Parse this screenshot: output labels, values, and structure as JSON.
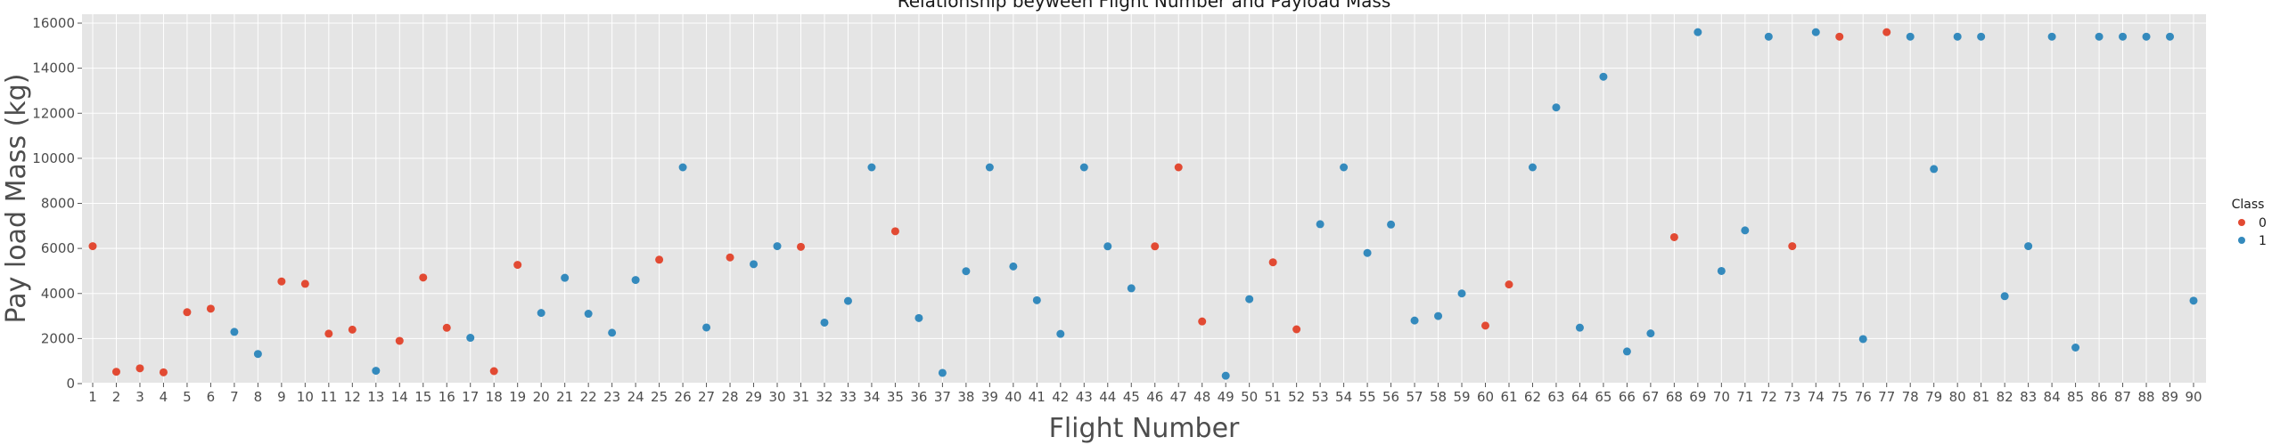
{
  "chart_data": {
    "type": "scatter",
    "title": "Relationship beyween Flight Number and Payload Mass",
    "xlabel": "Flight Number",
    "ylabel": "Pay load Mass (kg)",
    "xlim": [
      1,
      90
    ],
    "ylim": [
      0,
      16000
    ],
    "yticks": [
      0,
      2000,
      4000,
      6000,
      8000,
      10000,
      12000,
      14000,
      16000
    ],
    "grid": true,
    "legend": {
      "title": "Class",
      "position": "right",
      "entries": [
        {
          "label": "0",
          "color": "#e24a33"
        },
        {
          "label": "1",
          "color": "#348abd"
        }
      ]
    },
    "points": [
      {
        "x": 1,
        "y": 6100,
        "c": 0
      },
      {
        "x": 2,
        "y": 525,
        "c": 0
      },
      {
        "x": 3,
        "y": 677,
        "c": 0
      },
      {
        "x": 4,
        "y": 500,
        "c": 0
      },
      {
        "x": 5,
        "y": 3170,
        "c": 0
      },
      {
        "x": 6,
        "y": 3325,
        "c": 0
      },
      {
        "x": 7,
        "y": 2296,
        "c": 1
      },
      {
        "x": 8,
        "y": 1316,
        "c": 1
      },
      {
        "x": 9,
        "y": 4535,
        "c": 0
      },
      {
        "x": 10,
        "y": 4428,
        "c": 0
      },
      {
        "x": 11,
        "y": 2216,
        "c": 0
      },
      {
        "x": 12,
        "y": 2395,
        "c": 0
      },
      {
        "x": 13,
        "y": 570,
        "c": 1
      },
      {
        "x": 14,
        "y": 1898,
        "c": 0
      },
      {
        "x": 15,
        "y": 4707,
        "c": 0
      },
      {
        "x": 16,
        "y": 2477,
        "c": 0
      },
      {
        "x": 17,
        "y": 2034,
        "c": 1
      },
      {
        "x": 18,
        "y": 553,
        "c": 0
      },
      {
        "x": 19,
        "y": 5271,
        "c": 0
      },
      {
        "x": 20,
        "y": 3136,
        "c": 1
      },
      {
        "x": 21,
        "y": 4696,
        "c": 1
      },
      {
        "x": 22,
        "y": 3100,
        "c": 1
      },
      {
        "x": 23,
        "y": 2257,
        "c": 1
      },
      {
        "x": 24,
        "y": 4600,
        "c": 1
      },
      {
        "x": 25,
        "y": 5500,
        "c": 0
      },
      {
        "x": 26,
        "y": 9600,
        "c": 1
      },
      {
        "x": 27,
        "y": 2490,
        "c": 1
      },
      {
        "x": 28,
        "y": 5600,
        "c": 0
      },
      {
        "x": 29,
        "y": 5300,
        "c": 1
      },
      {
        "x": 30,
        "y": 6100,
        "c": 1
      },
      {
        "x": 31,
        "y": 6070,
        "c": 0
      },
      {
        "x": 32,
        "y": 2708,
        "c": 1
      },
      {
        "x": 33,
        "y": 3669,
        "c": 1
      },
      {
        "x": 34,
        "y": 9600,
        "c": 1
      },
      {
        "x": 35,
        "y": 6761,
        "c": 0
      },
      {
        "x": 36,
        "y": 2910,
        "c": 1
      },
      {
        "x": 37,
        "y": 475,
        "c": 1
      },
      {
        "x": 38,
        "y": 4990,
        "c": 1
      },
      {
        "x": 39,
        "y": 9600,
        "c": 1
      },
      {
        "x": 40,
        "y": 5200,
        "c": 1
      },
      {
        "x": 41,
        "y": 3700,
        "c": 1
      },
      {
        "x": 42,
        "y": 2205,
        "c": 1
      },
      {
        "x": 43,
        "y": 9600,
        "c": 1
      },
      {
        "x": 44,
        "y": 6092,
        "c": 1
      },
      {
        "x": 45,
        "y": 4230,
        "c": 1
      },
      {
        "x": 46,
        "y": 6092,
        "c": 0
      },
      {
        "x": 47,
        "y": 9600,
        "c": 0
      },
      {
        "x": 48,
        "y": 2760,
        "c": 0
      },
      {
        "x": 49,
        "y": 350,
        "c": 1
      },
      {
        "x": 50,
        "y": 3750,
        "c": 1
      },
      {
        "x": 51,
        "y": 5383,
        "c": 0
      },
      {
        "x": 52,
        "y": 2410,
        "c": 0
      },
      {
        "x": 53,
        "y": 7076,
        "c": 1
      },
      {
        "x": 54,
        "y": 9600,
        "c": 1
      },
      {
        "x": 55,
        "y": 5800,
        "c": 1
      },
      {
        "x": 56,
        "y": 7060,
        "c": 1
      },
      {
        "x": 57,
        "y": 2800,
        "c": 1
      },
      {
        "x": 58,
        "y": 3000,
        "c": 1
      },
      {
        "x": 59,
        "y": 4000,
        "c": 1
      },
      {
        "x": 60,
        "y": 2573,
        "c": 0
      },
      {
        "x": 61,
        "y": 4400,
        "c": 0
      },
      {
        "x": 62,
        "y": 9600,
        "c": 1
      },
      {
        "x": 63,
        "y": 12259,
        "c": 1
      },
      {
        "x": 64,
        "y": 2482,
        "c": 1
      },
      {
        "x": 65,
        "y": 13620,
        "c": 1
      },
      {
        "x": 66,
        "y": 1425,
        "c": 1
      },
      {
        "x": 67,
        "y": 2227,
        "c": 1
      },
      {
        "x": 68,
        "y": 6500,
        "c": 0
      },
      {
        "x": 69,
        "y": 15600,
        "c": 1
      },
      {
        "x": 70,
        "y": 5000,
        "c": 1
      },
      {
        "x": 71,
        "y": 6800,
        "c": 1
      },
      {
        "x": 72,
        "y": 15400,
        "c": 1
      },
      {
        "x": 73,
        "y": 6100,
        "c": 0
      },
      {
        "x": 74,
        "y": 15600,
        "c": 1
      },
      {
        "x": 75,
        "y": 15400,
        "c": 0
      },
      {
        "x": 76,
        "y": 1977,
        "c": 1
      },
      {
        "x": 77,
        "y": 15600,
        "c": 0
      },
      {
        "x": 78,
        "y": 15400,
        "c": 1
      },
      {
        "x": 79,
        "y": 9525,
        "c": 1
      },
      {
        "x": 80,
        "y": 15400,
        "c": 1
      },
      {
        "x": 81,
        "y": 15400,
        "c": 1
      },
      {
        "x": 82,
        "y": 3880,
        "c": 1
      },
      {
        "x": 83,
        "y": 6100,
        "c": 1
      },
      {
        "x": 84,
        "y": 15400,
        "c": 1
      },
      {
        "x": 85,
        "y": 1600,
        "c": 1
      },
      {
        "x": 86,
        "y": 15400,
        "c": 1
      },
      {
        "x": 87,
        "y": 15400,
        "c": 1
      },
      {
        "x": 88,
        "y": 15400,
        "c": 1
      },
      {
        "x": 89,
        "y": 15400,
        "c": 1
      },
      {
        "x": 90,
        "y": 3681,
        "c": 1
      }
    ]
  }
}
